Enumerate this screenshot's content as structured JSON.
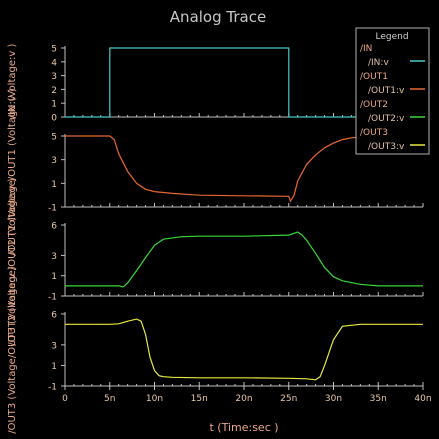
{
  "window": {
    "title": "Analog Trace"
  },
  "legend": {
    "title": "Legend",
    "entries": [
      {
        "group": "/IN",
        "signal": "/IN:v",
        "color": "#48c8c8"
      },
      {
        "group": "/OUT1",
        "signal": "/OUT1:v",
        "color": "#e86830"
      },
      {
        "group": "/OUT2",
        "signal": "/OUT2:v",
        "color": "#38d838"
      },
      {
        "group": "/OUT3",
        "signal": "/OUT3:v",
        "color": "#e8e840"
      }
    ]
  },
  "colors": {
    "background": "#000000",
    "axis": "#c0c0c0",
    "title": "#c8c8c8",
    "label": "#e8a888",
    "tick_text": "#e8c8a8",
    "legend_border": "#b0b0b0"
  },
  "x_axis": {
    "label": "t (Time:sec )",
    "tick_labels": [
      "0",
      "5n",
      "10n",
      "15n",
      "20n",
      "25n",
      "30n",
      "35n",
      "40n"
    ]
  },
  "chart_data": [
    {
      "type": "line",
      "ylabel": "/IN (Voltage:v )",
      "ylim": [
        0,
        5
      ],
      "yticks": [
        "0",
        "1",
        "2",
        "3",
        "4",
        "5"
      ],
      "xlim": [
        0,
        40
      ],
      "series": [
        {
          "name": "/IN:v",
          "color": "#48c8c8",
          "x": [
            0,
            5,
            5,
            25,
            25,
            40
          ],
          "y": [
            0,
            0,
            5,
            5,
            0,
            0
          ]
        }
      ]
    },
    {
      "type": "line",
      "ylabel": "/OUT1 (Voltage/OUT1 (Voltage:v )",
      "ylim": [
        -1,
        5
      ],
      "yticks": [
        "-1",
        "1",
        "3",
        "5"
      ],
      "xlim": [
        0,
        40
      ],
      "series": [
        {
          "name": "/OUT1:v",
          "color": "#e86830",
          "x": [
            0,
            5,
            5.5,
            6,
            7,
            8,
            9,
            10,
            12,
            15,
            20,
            25,
            25.2,
            25.6,
            26,
            27,
            28,
            29,
            30,
            31,
            32,
            35,
            40
          ],
          "y": [
            5,
            5,
            4.7,
            3.5,
            2.0,
            1.0,
            0.5,
            0.3,
            0.15,
            0.0,
            -0.05,
            -0.1,
            -0.5,
            0.0,
            1.2,
            2.6,
            3.4,
            4.0,
            4.4,
            4.7,
            4.85,
            5.0,
            5.0
          ]
        }
      ]
    },
    {
      "type": "line",
      "ylabel": "/OUT2 (Voltage/OUT2 (Voltage:v )",
      "ylim": [
        -1,
        6
      ],
      "yticks": [
        "-1",
        "1",
        "3",
        "6"
      ],
      "xlim": [
        0,
        40
      ],
      "series": [
        {
          "name": "/OUT2:v",
          "color": "#38d838",
          "x": [
            0,
            5,
            6,
            6.5,
            7,
            8,
            9,
            10,
            11,
            13,
            15,
            20,
            25,
            26,
            26.5,
            27,
            28,
            29,
            30,
            31,
            33,
            35,
            40
          ],
          "y": [
            0,
            0,
            0,
            -0.1,
            0.3,
            1.5,
            2.8,
            4.0,
            4.6,
            4.85,
            4.9,
            4.9,
            5.0,
            5.3,
            5.0,
            4.5,
            3.2,
            1.8,
            0.9,
            0.5,
            0.15,
            0.0,
            0.0
          ]
        }
      ]
    },
    {
      "type": "line",
      "ylabel": "/OUT3 (Voltage/OUT3 (Voltage:v )",
      "ylim": [
        -1,
        6
      ],
      "yticks": [
        "-1",
        "1",
        "3",
        "6"
      ],
      "xlim": [
        0,
        40
      ],
      "series": [
        {
          "name": "/OUT3:v",
          "color": "#e8e840",
          "x": [
            0,
            5,
            6,
            7,
            8,
            8.5,
            9,
            9.5,
            10,
            10.5,
            11,
            12,
            15,
            20,
            25,
            27,
            28,
            28.5,
            29,
            30,
            31,
            33,
            35,
            40
          ],
          "y": [
            5,
            5,
            5.05,
            5.3,
            5.5,
            5.3,
            4.0,
            1.8,
            0.5,
            0.0,
            -0.1,
            -0.15,
            -0.2,
            -0.2,
            -0.25,
            -0.3,
            -0.4,
            -0.1,
            1.0,
            3.5,
            4.8,
            5.0,
            5.0,
            5.0
          ]
        }
      ]
    }
  ]
}
